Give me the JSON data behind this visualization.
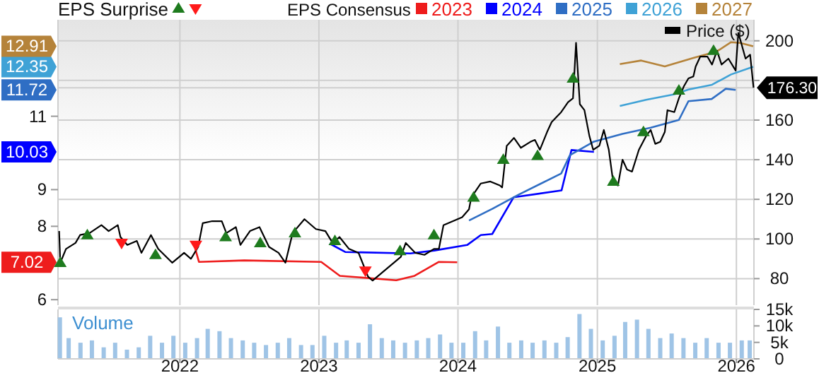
{
  "chart_data": [
    {
      "type": "line",
      "legend_title": "EPS Consensus",
      "annotations": [
        "EPS Surprise"
      ],
      "xlim": [
        "2021-02-15",
        "2026-02-16"
      ],
      "xticks": [
        "2022",
        "2023",
        "2024",
        "2025",
        "2026"
      ],
      "ylim": [
        5.85,
        13.63
      ],
      "yticks": [
        6,
        7.02,
        8,
        9,
        10.03,
        11,
        11.72,
        12.35,
        12.91
      ],
      "y2lim": [
        66.6,
        210.6
      ],
      "y2ticks": [
        80,
        100,
        120,
        140,
        160,
        {
          "value": 176.3,
          "label": "176.30"
        },
        {
          "value": 180,
          "label": null
        },
        200
      ],
      "grid": true,
      "legend": "top right",
      "tick_labels": "y",
      "series": [
        {
          "name": "2023",
          "color": "#ee1c1c",
          "x": [
            "2022-02-10",
            "2022-02-20",
            "2022-06-19",
            "2023-01-07",
            "2023-02-25",
            "2023-07-23",
            "2023-09-09",
            "2023-11-12",
            "2023-12-30"
          ],
          "values": [
            7.4,
            7.03,
            7.07,
            7.03,
            6.65,
            6.53,
            6.65,
            7.03,
            7.02
          ]
        },
        {
          "name": "2024",
          "color": "#0000ff",
          "x": [
            "2023-01-29",
            "2023-03-11",
            "2023-08-29",
            "2023-10-31",
            "2024-01-25",
            "2024-03-01",
            "2024-03-31",
            "2024-05-26",
            "2024-09-29",
            "2024-10-25",
            "2024-12-23"
          ],
          "values": [
            7.53,
            7.3,
            7.26,
            7.34,
            7.49,
            7.76,
            7.79,
            8.79,
            8.98,
            10.08,
            10.03
          ]
        },
        {
          "name": "2025",
          "color": "#2f6ec4",
          "x": [
            "2024-01-30",
            "2024-04-01",
            "2024-06-08",
            "2024-09-28",
            "2024-10-21",
            "2024-12-23",
            "2025-03-08",
            "2025-05-21",
            "2025-08-03",
            "2025-08-28",
            "2025-10-28",
            "2025-12-04",
            "2025-12-30"
          ],
          "values": [
            8.16,
            8.48,
            8.86,
            9.44,
            9.94,
            10.31,
            10.52,
            10.69,
            10.9,
            11.41,
            11.47,
            11.75,
            11.72
          ]
        },
        {
          "name": "2026",
          "color": "#3fa2d6",
          "x": [
            "2025-03-01",
            "2025-05-09",
            "2025-07-22",
            "2025-08-28",
            "2025-10-29",
            "2025-12-18",
            "2026-02-14"
          ],
          "values": [
            11.28,
            11.45,
            11.6,
            11.73,
            11.86,
            12.14,
            12.35
          ]
        },
        {
          "name": "2027",
          "color": "#b5833a",
          "x": [
            "2025-03-01",
            "2025-04-26",
            "2025-06-27",
            "2025-09-10",
            "2025-11-11",
            "2025-12-18",
            "2026-01-11",
            "2026-02-14"
          ],
          "values": [
            12.42,
            12.52,
            12.36,
            12.59,
            12.77,
            13.02,
            13.0,
            12.91
          ]
        },
        {
          "name": "Price ($)",
          "color": "#000000",
          "axis": "y2",
          "x": [
            "2021-02-18",
            "2021-02-21",
            "2021-03-08",
            "2021-04-02",
            "2021-04-14",
            "2021-05-09",
            "2021-06-09",
            "2021-06-28",
            "2021-07-22",
            "2021-07-29",
            "2021-08-16",
            "2021-09-10",
            "2021-09-22",
            "2021-10-17",
            "2021-11-05",
            "2021-12-12",
            "2022-01-12",
            "2022-01-30",
            "2022-02-18",
            "2022-03-02",
            "2022-03-27",
            "2022-04-21",
            "2022-05-03",
            "2022-05-28",
            "2022-06-09",
            "2022-07-04",
            "2022-07-29",
            "2022-08-23",
            "2022-09-17",
            "2022-10-05",
            "2022-10-24",
            "2022-11-24",
            "2022-12-24",
            "2023-01-18",
            "2023-02-06",
            "2023-02-24",
            "2023-03-21",
            "2023-04-15",
            "2023-05-10",
            "2023-05-22",
            "2023-06-28",
            "2023-08-04",
            "2023-08-17",
            "2023-09-11",
            "2023-10-05",
            "2023-10-30",
            "2023-11-12",
            "2023-11-24",
            "2023-12-19",
            "2024-01-12",
            "2024-01-30",
            "2024-02-05",
            "2024-03-01",
            "2024-03-26",
            "2024-04-20",
            "2024-04-26",
            "2024-05-08",
            "2024-05-27",
            "2024-06-14",
            "2024-07-09",
            "2024-07-21",
            "2024-08-03",
            "2024-08-22",
            "2024-09-03",
            "2024-09-28",
            "2024-10-16",
            "2024-10-29",
            "2024-11-06",
            "2024-11-16",
            "2024-11-28",
            "2024-12-11",
            "2024-12-21",
            "2025-01-06",
            "2025-01-18",
            "2025-01-31",
            "2025-02-12",
            "2025-02-24",
            "2025-03-08",
            "2025-03-20",
            "2025-04-02",
            "2025-04-20",
            "2025-05-09",
            "2025-05-21",
            "2025-06-02",
            "2025-06-15",
            "2025-06-27",
            "2025-07-04",
            "2025-07-22",
            "2025-08-03",
            "2025-08-16",
            "2025-08-28",
            "2025-09-10",
            "2025-09-16",
            "2025-09-28",
            "2025-10-17",
            "2025-10-29",
            "2025-11-11",
            "2025-11-23",
            "2025-12-11",
            "2025-12-30",
            "2026-01-06",
            "2026-01-12",
            "2026-01-25",
            "2026-02-06",
            "2026-02-15"
          ],
          "values": [
            104,
            88,
            95,
            98,
            102,
            103,
            107,
            104,
            107,
            101,
            97,
            99,
            93,
            102,
            95,
            88,
            93,
            90,
            96,
            108,
            109,
            109,
            103,
            106,
            97,
            104,
            106,
            96,
            93,
            88,
            103,
            110,
            105,
            104,
            98,
            101,
            95,
            93,
            81,
            79,
            85,
            91,
            98,
            93,
            92,
            95,
            95,
            107,
            109,
            111,
            115,
            121,
            128,
            129,
            127,
            126,
            147,
            151,
            146,
            149,
            150,
            145,
            154,
            159,
            164,
            169,
            171,
            199,
            168,
            165,
            152,
            145,
            147,
            155,
            145,
            128,
            127,
            140,
            135,
            134,
            145,
            152,
            155,
            148,
            149,
            154,
            165,
            164,
            171,
            177,
            181,
            182,
            187,
            192,
            192,
            188,
            195,
            188,
            191,
            185,
            204,
            200,
            191,
            193,
            176.3
          ]
        },
        {
          "type": "scatter",
          "color": "#1e7b1e",
          "axis": "y2",
          "marker": "triangle",
          "x": [
            "2021-02-21",
            "2021-05-03",
            "2021-10-29",
            "2022-05-01",
            "2022-07-31",
            "2022-10-30",
            "2023-02-12",
            "2023-08-02",
            "2023-10-30",
            "2024-02-11",
            "2024-04-29",
            "2024-07-28",
            "2024-10-29",
            "2025-02-12",
            "2025-05-02",
            "2025-08-03",
            "2025-11-02"
          ],
          "values": [
            88,
            102,
            92,
            101,
            98,
            103,
            99,
            94,
            102,
            121,
            140,
            142,
            181,
            129,
            154,
            175,
            195
          ]
        },
        {
          "type": "scatter",
          "color": "#ff1a1a",
          "axis": "y2",
          "marker": "triangle-down",
          "x": [
            "2021-08-01",
            "2022-02-12",
            "2023-05-03"
          ],
          "values": [
            98,
            97,
            84
          ]
        }
      ]
    },
    {
      "type": "bar",
      "title": "Volume",
      "color": "#9fc4e6",
      "xlim": [
        "2021-02-15",
        "2026-02-16"
      ],
      "xticks": [
        "2022",
        "2023",
        "2024",
        "2025",
        "2026"
      ],
      "ylim": [
        0,
        15000
      ],
      "yticks": [
        0,
        {
          "value": 5000,
          "label": "5k"
        },
        {
          "value": 10000,
          "label": "10k"
        },
        {
          "value": 15000,
          "label": "15k"
        }
      ],
      "grid": "x",
      "x": [
        "2021-02-20",
        "2021-03-15",
        "2021-04-15",
        "2021-05-15",
        "2021-06-15",
        "2021-07-15",
        "2021-08-15",
        "2021-09-15",
        "2021-10-15",
        "2021-11-15",
        "2021-12-15",
        "2022-01-15",
        "2022-02-15",
        "2022-03-15",
        "2022-04-15",
        "2022-05-15",
        "2022-06-15",
        "2022-07-15",
        "2022-08-15",
        "2022-09-15",
        "2022-10-15",
        "2022-11-15",
        "2022-12-15",
        "2023-01-15",
        "2023-02-15",
        "2023-03-15",
        "2023-04-15",
        "2023-05-15",
        "2023-06-15",
        "2023-07-15",
        "2023-08-15",
        "2023-09-15",
        "2023-10-15",
        "2023-11-15",
        "2023-12-15",
        "2024-01-15",
        "2024-02-15",
        "2024-03-15",
        "2024-04-15",
        "2024-05-15",
        "2024-06-15",
        "2024-07-15",
        "2024-08-15",
        "2024-09-15",
        "2024-10-15",
        "2024-11-15",
        "2024-12-15",
        "2025-01-15",
        "2025-02-15",
        "2025-03-15",
        "2025-04-15",
        "2025-05-15",
        "2025-06-15",
        "2025-07-15",
        "2025-08-15",
        "2025-09-15",
        "2025-10-15",
        "2025-11-15",
        "2025-12-15",
        "2026-01-15",
        "2026-02-05"
      ],
      "values": [
        12600,
        6300,
        4900,
        5600,
        3500,
        4900,
        2800,
        3500,
        7000,
        4900,
        7000,
        4900,
        6300,
        9100,
        8400,
        6300,
        5600,
        4900,
        4200,
        4900,
        6300,
        4200,
        4200,
        7000,
        4900,
        5600,
        4900,
        10500,
        6300,
        5600,
        4900,
        5600,
        6300,
        7400,
        4900,
        4900,
        8400,
        5600,
        9800,
        4900,
        5600,
        4900,
        5600,
        4900,
        6600,
        13600,
        9100,
        5600,
        7000,
        11200,
        11900,
        9100,
        6300,
        7700,
        6300,
        4900,
        6300,
        4900,
        4900,
        5600,
        5600
      ]
    }
  ]
}
